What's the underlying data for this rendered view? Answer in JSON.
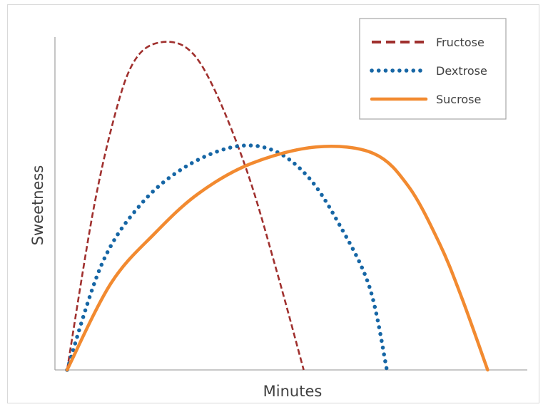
{
  "chart_data": {
    "type": "line",
    "title": "",
    "xlabel": "Minutes",
    "ylabel": "Sweetness",
    "xlim": [
      0,
      100
    ],
    "ylim": [
      0,
      100
    ],
    "grid": false,
    "legend_position": "top-right",
    "series": [
      {
        "name": "Fructose",
        "color": "#a0302e",
        "style": "dashed",
        "points": [
          [
            0,
            0
          ],
          [
            6,
            48
          ],
          [
            11,
            77
          ],
          [
            15,
            92
          ],
          [
            20,
            98
          ],
          [
            27,
            97
          ],
          [
            33,
            86
          ],
          [
            41,
            60
          ],
          [
            48,
            29
          ],
          [
            54,
            0
          ]
        ]
      },
      {
        "name": "Dextrose",
        "color": "#1666a5",
        "style": "dotted",
        "points": [
          [
            0,
            0
          ],
          [
            8,
            32
          ],
          [
            17,
            50
          ],
          [
            27,
            61
          ],
          [
            38,
            67
          ],
          [
            47,
            66
          ],
          [
            55,
            58
          ],
          [
            62,
            44
          ],
          [
            69,
            25
          ],
          [
            73,
            0
          ]
        ]
      },
      {
        "name": "Sucrose",
        "color": "#f28a30",
        "style": "solid",
        "points": [
          [
            0,
            0
          ],
          [
            10,
            26
          ],
          [
            20,
            41
          ],
          [
            30,
            53
          ],
          [
            42,
            62
          ],
          [
            57,
            67
          ],
          [
            70,
            65
          ],
          [
            78,
            55
          ],
          [
            85,
            38
          ],
          [
            90,
            22
          ],
          [
            96,
            0
          ]
        ]
      }
    ]
  }
}
